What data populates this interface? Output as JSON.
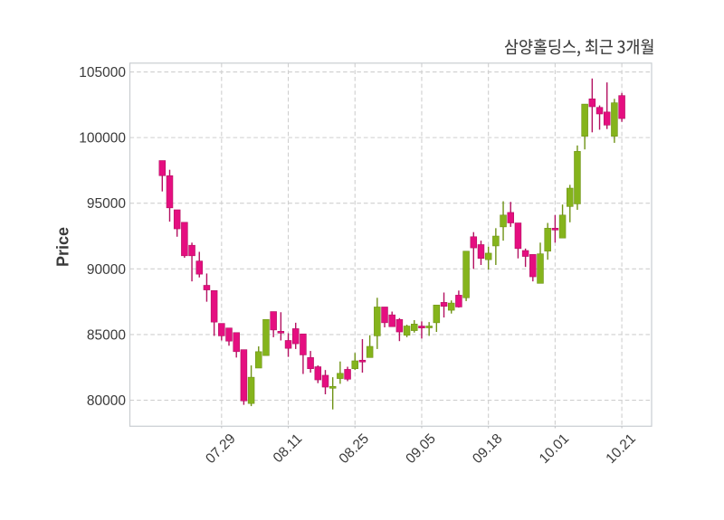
{
  "figure": {
    "title": "삼양홀딩스, 최근 3개월",
    "ylabel": "Price"
  },
  "chart_data": {
    "type": "candlestick",
    "title": "삼양홀딩스, 최근 3개월",
    "ylabel": "Price",
    "xlabel": "",
    "x_tick_labels": [
      "07.29",
      "08.11",
      "08.25",
      "09.05",
      "09.18",
      "10.01",
      "10.21"
    ],
    "x_tick_candle_indices": [
      8,
      17,
      26,
      35,
      44,
      53,
      62
    ],
    "y_tick_values": [
      80000,
      85000,
      90000,
      95000,
      100000,
      105000
    ],
    "ylim": [
      78020,
      105670
    ],
    "grid": "dashed-on",
    "legend_position": "none",
    "colors": {
      "up_body": "#85b41c",
      "up_wick": "#6f9316",
      "down_body": "#e50e80",
      "down_wick": "#b31161",
      "grid": "#cfcfcf",
      "border": "#c9cdd1",
      "text": "#3a3a3a"
    },
    "ohlc_columns": [
      "open",
      "high",
      "low",
      "close"
    ],
    "candles": [
      [
        98250,
        98250,
        95900,
        97100
      ],
      [
        97100,
        97550,
        93600,
        94650
      ],
      [
        94500,
        94500,
        92450,
        93050
      ],
      [
        93550,
        93550,
        90850,
        91000
      ],
      [
        91800,
        92000,
        89050,
        91000
      ],
      [
        90600,
        91300,
        89350,
        89600
      ],
      [
        88750,
        89650,
        87500,
        88400
      ],
      [
        88350,
        88350,
        84900,
        85950
      ],
      [
        85850,
        85850,
        84550,
        84900
      ],
      [
        85500,
        85500,
        84150,
        84500
      ],
      [
        85150,
        85150,
        83250,
        83700
      ],
      [
        83850,
        83850,
        79650,
        79950
      ],
      [
        79750,
        82650,
        79550,
        81750
      ],
      [
        82450,
        84100,
        82450,
        83700
      ],
      [
        83400,
        86150,
        83400,
        86150
      ],
      [
        86750,
        86750,
        84800,
        85350
      ],
      [
        85250,
        86700,
        84550,
        85150
      ],
      [
        84550,
        85100,
        83300,
        83950
      ],
      [
        85450,
        85900,
        83900,
        84300
      ],
      [
        85050,
        85050,
        82000,
        83450
      ],
      [
        83250,
        83750,
        82100,
        82400
      ],
      [
        82550,
        82650,
        81300,
        81550
      ],
      [
        81900,
        82300,
        80450,
        81000
      ],
      [
        81000,
        81750,
        79300,
        81050
      ],
      [
        81650,
        82950,
        81250,
        82050
      ],
      [
        82350,
        82550,
        81450,
        81600
      ],
      [
        82400,
        83600,
        82300,
        83000
      ],
      [
        83050,
        84650,
        82100,
        83000
      ],
      [
        83250,
        84950,
        83250,
        84100
      ],
      [
        84900,
        87800,
        83900,
        87100
      ],
      [
        87100,
        87100,
        85550,
        85900
      ],
      [
        86500,
        86750,
        85600,
        85600
      ],
      [
        86150,
        86250,
        84500,
        85200
      ],
      [
        84950,
        85750,
        84800,
        85650
      ],
      [
        85300,
        86100,
        85150,
        85800
      ],
      [
        85650,
        86000,
        84700,
        85500
      ],
      [
        85600,
        85950,
        84900,
        85650
      ],
      [
        85900,
        87250,
        85200,
        87250
      ],
      [
        87450,
        88200,
        86300,
        87150
      ],
      [
        86850,
        87600,
        86600,
        87400
      ],
      [
        88000,
        88350,
        87050,
        87100
      ],
      [
        87800,
        91350,
        87550,
        91350
      ],
      [
        92450,
        92800,
        90000,
        91600
      ],
      [
        91850,
        92150,
        90300,
        90800
      ],
      [
        90700,
        91700,
        89950,
        91200
      ],
      [
        91750,
        93100,
        90300,
        92500
      ],
      [
        93200,
        95150,
        92150,
        94100
      ],
      [
        94300,
        95100,
        93200,
        93500
      ],
      [
        93500,
        93500,
        90800,
        91550
      ],
      [
        91400,
        91550,
        90150,
        90950
      ],
      [
        91100,
        91100,
        89050,
        89400
      ],
      [
        88900,
        92000,
        88900,
        91150
      ],
      [
        91350,
        93500,
        90700,
        93100
      ],
      [
        93100,
        94100,
        92000,
        93000
      ],
      [
        92350,
        94900,
        92350,
        94100
      ],
      [
        94750,
        96400,
        93550,
        96150
      ],
      [
        94950,
        99400,
        94500,
        98950
      ],
      [
        100100,
        102550,
        99100,
        102550
      ],
      [
        102950,
        104500,
        100400,
        102350
      ],
      [
        102300,
        102450,
        100600,
        101800
      ],
      [
        101950,
        104200,
        100650,
        100950
      ],
      [
        100100,
        102950,
        99600,
        102650
      ],
      [
        103200,
        103400,
        101200,
        101450
      ]
    ]
  }
}
